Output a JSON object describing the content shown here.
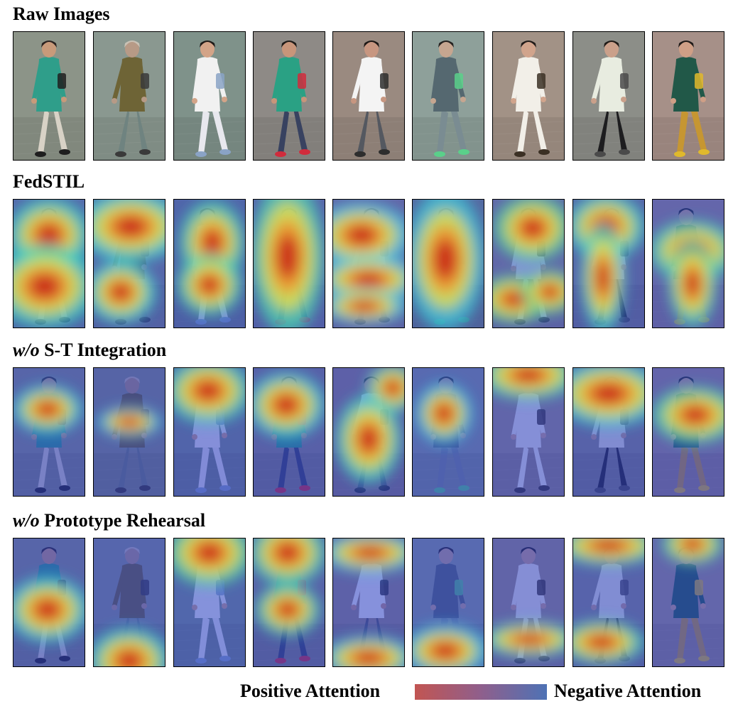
{
  "sections": [
    {
      "title_italic": "",
      "title": "Raw Images",
      "kind": "raw"
    },
    {
      "title_italic": "",
      "title": "FedSTIL",
      "kind": "heat"
    },
    {
      "title_italic": "w/o",
      "title": " S-T Integration",
      "kind": "heat"
    },
    {
      "title_italic": "w/o",
      "title": " Prototype Rehearsal",
      "kind": "heat"
    }
  ],
  "people": [
    {
      "bg": "#8c9488",
      "top": "#2f9e8a",
      "bottom": "#d8d2c6",
      "skin": "#c89a7a",
      "hair": "#2a2220",
      "accent": "#1e1e1e"
    },
    {
      "bg": "#8a9890",
      "top": "#6e6436",
      "bottom": "#6f8380",
      "skin": "#b79a86",
      "hair": "#c9c2b5",
      "accent": "#3a3a3a"
    },
    {
      "bg": "#7f928a",
      "top": "#f1f1f1",
      "bottom": "#e8e8ee",
      "skin": "#d3a488",
      "hair": "#1f1a18",
      "accent": "#8aa3c6"
    },
    {
      "bg": "#8e8a86",
      "top": "#2aa184",
      "bottom": "#384260",
      "skin": "#c8957a",
      "hair": "#1e1a18",
      "accent": "#d12c3c"
    },
    {
      "bg": "#9a8a80",
      "top": "#f4f4f4",
      "bottom": "#545860",
      "skin": "#c79680",
      "hair": "#1d1816",
      "accent": "#2d2d2d"
    },
    {
      "bg": "#8ea09a",
      "top": "#556870",
      "bottom": "#7a8c92",
      "skin": "#c6a690",
      "hair": "#252220",
      "accent": "#5ad08a"
    },
    {
      "bg": "#a29286",
      "top": "#f2efe8",
      "bottom": "#f2efe8",
      "skin": "#d1a48c",
      "hair": "#201a18",
      "accent": "#3b3024"
    },
    {
      "bg": "#8c8e88",
      "top": "#e8ece0",
      "bottom": "#1d1d1f",
      "skin": "#caa08a",
      "hair": "#1f1b18",
      "accent": "#4a4a4a"
    },
    {
      "bg": "#a69088",
      "top": "#215848",
      "bottom": "#c69632",
      "skin": "#cf9f86",
      "hair": "#1f1a18",
      "accent": "#e0b92c"
    }
  ],
  "heatmaps": [
    [
      {
        "h": [
          [
            50,
            50,
            38,
            34
          ],
          [
            44,
            122,
            48,
            38
          ]
        ],
        "base": "#2c44c8",
        "hi": "#2fd0c4"
      },
      {
        "h": [
          [
            52,
            38,
            50,
            32
          ],
          [
            38,
            130,
            32,
            28
          ]
        ],
        "base": "#2e3ec0",
        "hi": "#35d7d0"
      },
      {
        "h": [
          [
            54,
            60,
            30,
            38
          ],
          [
            50,
            120,
            30,
            28
          ]
        ],
        "base": "#2c40c4",
        "hi": "#3fd0b8"
      },
      {
        "h": [
          [
            48,
            80,
            34,
            70
          ]
        ],
        "base": "#2c44cc",
        "hi": "#48d4b0"
      },
      {
        "h": [
          [
            40,
            50,
            46,
            30
          ],
          [
            50,
            112,
            48,
            22
          ],
          [
            44,
            150,
            40,
            16
          ]
        ],
        "base": "#3448c8",
        "hi": "#40c8e0"
      },
      {
        "h": [
          [
            46,
            84,
            36,
            64
          ]
        ],
        "base": "#263aa8",
        "hi": "#3ac8d8"
      },
      {
        "h": [
          [
            56,
            40,
            36,
            30
          ],
          [
            30,
            140,
            34,
            22
          ],
          [
            80,
            130,
            26,
            20
          ]
        ],
        "base": "#2e44c6",
        "hi": "#48d0a0"
      },
      {
        "h": [
          [
            46,
            38,
            36,
            30
          ],
          [
            42,
            110,
            20,
            50
          ]
        ],
        "base": "#2c40c2",
        "hi": "#3ad0c8"
      },
      {
        "h": [
          [
            56,
            72,
            40,
            28
          ],
          [
            56,
            118,
            22,
            40
          ]
        ],
        "base": "#2e44c8",
        "hi": "#40d0b8"
      }
    ],
    [
      {
        "h": [
          [
            48,
            58,
            32,
            22
          ]
        ],
        "base": "#2c3ec4",
        "hi": "#2cc8d8"
      },
      {
        "h": [
          [
            50,
            76,
            30,
            14
          ]
        ],
        "base": "#2c3ab8",
        "hi": "#2cb8e0"
      },
      {
        "h": [
          [
            48,
            32,
            40,
            30
          ]
        ],
        "base": "#2c3ec4",
        "hi": "#3ac8c0"
      },
      {
        "h": [
          [
            46,
            52,
            36,
            30
          ]
        ],
        "base": "#2c3ec4",
        "hi": "#38c8d0"
      },
      {
        "h": [
          [
            84,
            28,
            24,
            22
          ],
          [
            50,
            100,
            30,
            40
          ]
        ],
        "base": "#2c3ec8",
        "hi": "#3ed0c0"
      },
      {
        "h": [
          [
            44,
            64,
            26,
            28
          ]
        ],
        "base": "#2c3ec4",
        "hi": "#30c0e0"
      },
      {
        "h": [
          [
            50,
            10,
            46,
            22
          ]
        ],
        "base": "#2c40c8",
        "hi": "#3ed2b8"
      },
      {
        "h": [
          [
            50,
            36,
            52,
            30
          ]
        ],
        "base": "#2c3ec4",
        "hi": "#36c8d0"
      },
      {
        "h": [
          [
            60,
            66,
            40,
            26
          ]
        ],
        "base": "#2c40c8",
        "hi": "#40d0b0"
      }
    ],
    [
      {
        "h": [
          [
            48,
            100,
            38,
            30
          ]
        ],
        "base": "#2c3ec4",
        "hi": "#34cad0"
      },
      {
        "h": [
          [
            50,
            172,
            38,
            30
          ]
        ],
        "base": "#2c3ec4",
        "hi": "#36cac8"
      },
      {
        "h": [
          [
            50,
            20,
            40,
            30
          ]
        ],
        "base": "#2c44c8",
        "hi": "#48d0a8"
      },
      {
        "h": [
          [
            48,
            20,
            36,
            30
          ],
          [
            48,
            100,
            30,
            24
          ]
        ],
        "base": "#2c40c4",
        "hi": "#3ccab8"
      },
      {
        "h": [
          [
            52,
            20,
            46,
            18
          ],
          [
            50,
            168,
            44,
            20
          ]
        ],
        "base": "#2c40c8",
        "hi": "#38c4d8"
      },
      {
        "h": [
          [
            46,
            158,
            40,
            24
          ]
        ],
        "base": "#2c3ec4",
        "hi": "#30c0e0"
      },
      {
        "h": [
          [
            52,
            142,
            46,
            16
          ]
        ],
        "base": "#2c3ec4",
        "hi": "#36cac8"
      },
      {
        "h": [
          [
            50,
            10,
            50,
            18
          ],
          [
            40,
            146,
            40,
            20
          ]
        ],
        "base": "#2c40c8",
        "hi": "#40c8c0"
      },
      {
        "h": [
          [
            56,
            8,
            28,
            18
          ]
        ],
        "base": "#2c44c8",
        "hi": "#44d0b0"
      }
    ]
  ],
  "legend": {
    "positive": "Positive Attention",
    "negative": "Negative Attention",
    "color_positive": "#c25552",
    "color_negative": "#4e72b5"
  }
}
